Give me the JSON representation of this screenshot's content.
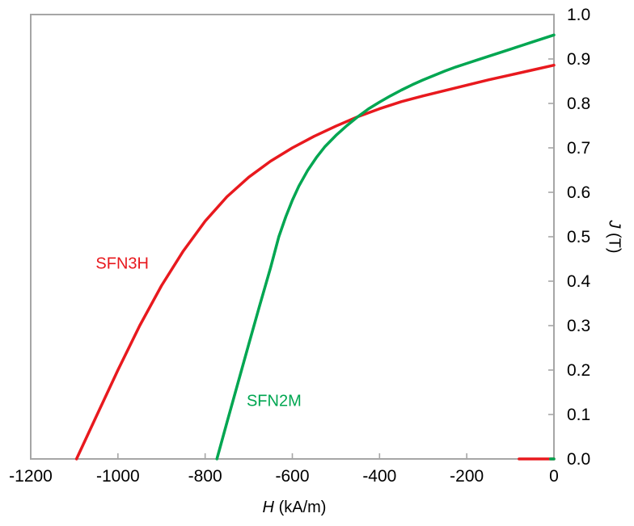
{
  "figure": {
    "background": "#ffffff",
    "axis_color": "#a6a6a6",
    "tick_label_color": "#000000"
  },
  "chart_data": {
    "type": "line",
    "title": "",
    "xlabel": {
      "var": "H",
      "unit": " (kA/m)"
    },
    "ylabel": {
      "var": "J",
      "unit": " (T)"
    },
    "xlim": [
      -1200,
      0
    ],
    "ylim": [
      0,
      1.0
    ],
    "x_ticks": [
      -1200,
      -1000,
      -800,
      -600,
      -400,
      -200,
      0
    ],
    "x_tick_labels": [
      "-1200",
      "-1000",
      "-800",
      "-600",
      "-400",
      "-200",
      "0"
    ],
    "y_ticks": [
      0,
      0.1,
      0.2,
      0.3,
      0.4,
      0.5,
      0.6,
      0.7,
      0.8,
      0.9,
      1.0
    ],
    "y_tick_labels": [
      "0.0",
      "0.1",
      "0.2",
      "0.3",
      "0.4",
      "0.5",
      "0.6",
      "0.7",
      "0.8",
      "0.9",
      "1.0"
    ],
    "y_axis_side": "right",
    "grid": false,
    "legend": "inline-labels",
    "series": [
      {
        "name": "SFN3H",
        "color": "#e8191e",
        "label_pos": [
          -990,
          0.439
        ],
        "points": [
          [
            -1095,
            0
          ],
          [
            -1050,
            0.095
          ],
          [
            -1000,
            0.2
          ],
          [
            -950,
            0.3
          ],
          [
            -900,
            0.39
          ],
          [
            -850,
            0.468
          ],
          [
            -800,
            0.535
          ],
          [
            -750,
            0.59
          ],
          [
            -700,
            0.634
          ],
          [
            -650,
            0.67
          ],
          [
            -600,
            0.7
          ],
          [
            -550,
            0.726
          ],
          [
            -500,
            0.749
          ],
          [
            -450,
            0.77
          ],
          [
            -400,
            0.788
          ],
          [
            -350,
            0.804
          ],
          [
            -300,
            0.817
          ],
          [
            -250,
            0.829
          ],
          [
            -200,
            0.841
          ],
          [
            -150,
            0.853
          ],
          [
            -100,
            0.864
          ],
          [
            -50,
            0.875
          ],
          [
            0,
            0.886
          ]
        ]
      },
      {
        "name": "SFN2M",
        "color": "#00a651",
        "label_pos": [
          -642,
          0.129
        ],
        "points": [
          [
            -773,
            0
          ],
          [
            -750,
            0.082
          ],
          [
            -725,
            0.17
          ],
          [
            -700,
            0.258
          ],
          [
            -675,
            0.345
          ],
          [
            -650,
            0.43
          ],
          [
            -631,
            0.5
          ],
          [
            -615,
            0.545
          ],
          [
            -600,
            0.582
          ],
          [
            -585,
            0.614
          ],
          [
            -565,
            0.649
          ],
          [
            -545,
            0.678
          ],
          [
            -525,
            0.703
          ],
          [
            -500,
            0.728
          ],
          [
            -475,
            0.75
          ],
          [
            -450,
            0.77
          ],
          [
            -425,
            0.788
          ],
          [
            -400,
            0.803
          ],
          [
            -375,
            0.817
          ],
          [
            -350,
            0.83
          ],
          [
            -325,
            0.842
          ],
          [
            -300,
            0.853
          ],
          [
            -275,
            0.863
          ],
          [
            -250,
            0.873
          ],
          [
            -225,
            0.882
          ],
          [
            -200,
            0.89
          ],
          [
            -175,
            0.898
          ],
          [
            -150,
            0.906
          ],
          [
            -125,
            0.914
          ],
          [
            -100,
            0.922
          ],
          [
            -75,
            0.93
          ],
          [
            -50,
            0.938
          ],
          [
            -25,
            0.946
          ],
          [
            0,
            0.954
          ]
        ]
      }
    ],
    "extra_segments": [
      {
        "series": "SFN3H",
        "color": "#e8191e",
        "points": [
          [
            -80,
            0
          ],
          [
            0,
            0
          ]
        ]
      },
      {
        "series": "SFN2M",
        "color": "#00a651",
        "points": [
          [
            -8,
            0
          ],
          [
            0,
            0
          ]
        ]
      }
    ]
  }
}
